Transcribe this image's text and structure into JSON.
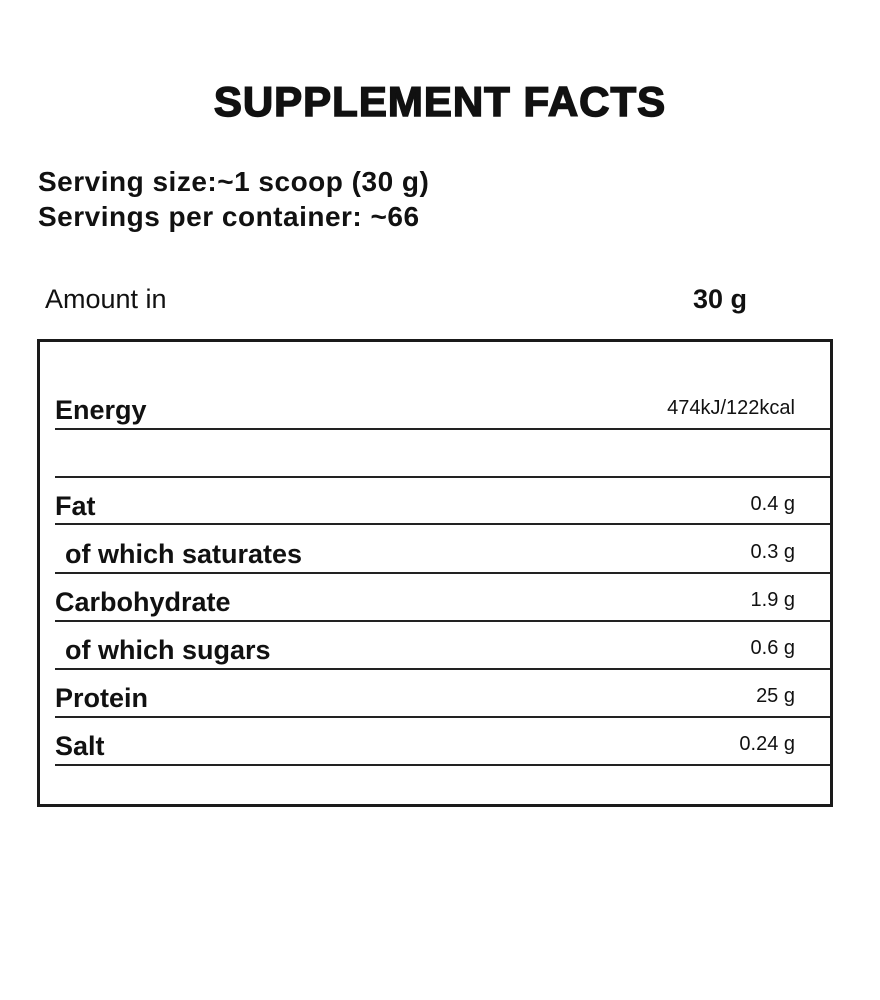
{
  "header": {
    "title": "SUPPLEMENT FACTS",
    "serving_size": "Serving size:~1 scoop (30 g)",
    "servings_per_container": "Servings per container: ~66"
  },
  "table": {
    "header": {
      "label": "Amount in",
      "amount": "30 g"
    },
    "rows": [
      {
        "label": "Energy",
        "value": "474kJ/122kcal"
      },
      {
        "label": "Fat",
        "value": "0.4 g"
      },
      {
        "label": "of which saturates",
        "value": "0.3 g"
      },
      {
        "label": "Carbohydrate",
        "value": "1.9 g"
      },
      {
        "label": "of which sugars",
        "value": "0.6 g"
      },
      {
        "label": "Protein",
        "value": "25 g"
      },
      {
        "label": "Salt",
        "value": "0.24 g"
      }
    ]
  }
}
